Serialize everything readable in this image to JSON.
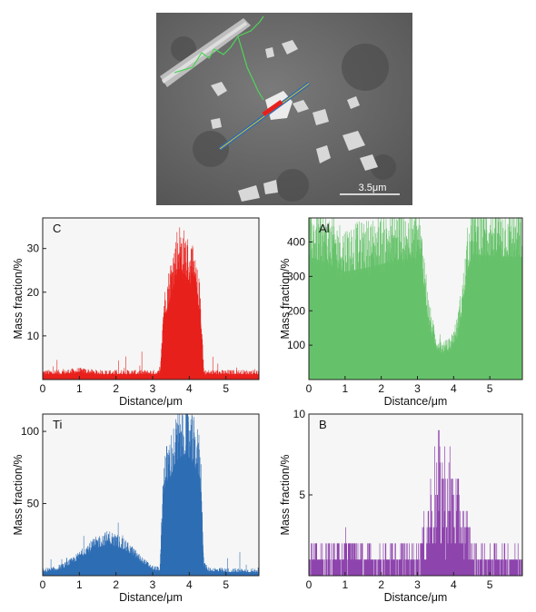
{
  "micrograph": {
    "scale_bar_label": "3.5μm"
  },
  "chart_data": [
    {
      "type": "area",
      "element": "C",
      "color": "#e8201c",
      "xlabel": "Distance/μm",
      "ylabel": "Mass fraction/%",
      "xlim": [
        0,
        5.9
      ],
      "ylim": [
        0,
        37
      ],
      "xticks": [
        0,
        1,
        2,
        3,
        4,
        5
      ],
      "yticks": [
        10,
        20,
        30
      ],
      "grid": false,
      "profile": {
        "x": [
          0,
          0.5,
          1.0,
          1.5,
          2.0,
          2.5,
          3.0,
          3.2,
          3.3,
          3.5,
          3.7,
          3.9,
          4.1,
          4.3,
          4.4,
          4.5,
          5.0,
          5.5,
          5.9
        ],
        "y": [
          1.5,
          1.5,
          2.0,
          1.5,
          1.5,
          1.5,
          1.5,
          1.5,
          16,
          23,
          30,
          28,
          25,
          18,
          1.5,
          1.5,
          1.5,
          1.5,
          1.5
        ]
      }
    },
    {
      "type": "area",
      "element": "Al",
      "color": "#66c26a",
      "xlabel": "Distance/μm",
      "ylabel": "Mass fraction/%",
      "xlim": [
        0,
        5.9
      ],
      "ylim": [
        0,
        470
      ],
      "xticks": [
        0,
        1,
        2,
        3,
        4,
        5
      ],
      "yticks": [
        100,
        200,
        300,
        400
      ],
      "grid": false,
      "profile": {
        "x": [
          0,
          0.5,
          1.0,
          1.5,
          2.0,
          2.5,
          3.0,
          3.15,
          3.3,
          3.5,
          3.7,
          3.9,
          4.1,
          4.3,
          4.4,
          4.5,
          5.0,
          5.5,
          5.9
        ],
        "y": [
          420,
          400,
          370,
          380,
          395,
          410,
          415,
          350,
          200,
          110,
          90,
          100,
          150,
          280,
          380,
          430,
          425,
          420,
          420
        ]
      }
    },
    {
      "type": "area",
      "element": "Ti",
      "color": "#2e6db4",
      "xlabel": "Distance/μm",
      "ylabel": "Mass fraction/%",
      "xlim": [
        0,
        5.9
      ],
      "ylim": [
        0,
        112
      ],
      "xticks": [
        0,
        1,
        2,
        3,
        4,
        5
      ],
      "yticks": [
        50,
        100
      ],
      "grid": false,
      "profile": {
        "x": [
          0,
          0.3,
          0.6,
          0.9,
          1.2,
          1.5,
          1.8,
          2.1,
          2.4,
          2.7,
          3.0,
          3.2,
          3.3,
          3.5,
          3.7,
          3.9,
          4.1,
          4.3,
          4.4,
          4.5,
          5.0,
          5.5,
          5.9
        ],
        "y": [
          3,
          4,
          7,
          12,
          18,
          23,
          26,
          23,
          18,
          11,
          5,
          4,
          70,
          82,
          95,
          100,
          92,
          80,
          8,
          4,
          3,
          3,
          3
        ]
      }
    },
    {
      "type": "bar",
      "element": "B",
      "color": "#8e44ad",
      "xlabel": "Distance/μm",
      "ylabel": "Mass fraction/%",
      "xlim": [
        0,
        5.9
      ],
      "ylim": [
        0,
        10
      ],
      "xticks": [
        0,
        1,
        2,
        3,
        4,
        5
      ],
      "yticks": [
        5,
        10
      ],
      "grid": false,
      "profile": {
        "x": [
          0,
          0.5,
          1.0,
          1.5,
          2.0,
          2.5,
          3.0,
          3.2,
          3.4,
          3.6,
          3.8,
          4.0,
          4.2,
          4.4,
          4.6,
          5.0,
          5.5,
          5.9
        ],
        "y": [
          1,
          1,
          1.5,
          1,
          1,
          1,
          1.2,
          2,
          4,
          5,
          4.5,
          4,
          3,
          2,
          1,
          1,
          1,
          1
        ]
      }
    }
  ]
}
